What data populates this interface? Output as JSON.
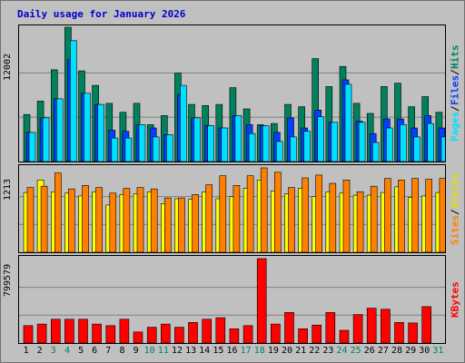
{
  "title": "Daily usage for January 2026",
  "colors": {
    "hits": "#00805c",
    "files": "#0040ff",
    "pages": "#00e0ff",
    "visits": "#ffff00",
    "sites": "#ff8000",
    "kbytes": "#ff0000",
    "weekend_label": "#00805c",
    "weekday_label": "#000000",
    "title": "#0000cc"
  },
  "panel_labels": {
    "top": {
      "pages": "Pages",
      "files": "Files",
      "hits": "Hits",
      "sep": " / "
    },
    "middle": {
      "sites": "Sites",
      "visits": "Visits",
      "sep": " / "
    },
    "bottom": {
      "kbytes": "KBytes"
    }
  },
  "chart_data": [
    {
      "type": "bar",
      "name": "hits-files-pages",
      "categories": [
        "1",
        "2",
        "3",
        "4",
        "5",
        "6",
        "7",
        "8",
        "9",
        "10",
        "11",
        "12",
        "13",
        "14",
        "15",
        "16",
        "17",
        "18",
        "19",
        "20",
        "21",
        "22",
        "23",
        "24",
        "25",
        "26",
        "27",
        "28",
        "29",
        "30",
        "31"
      ],
      "weekend_days": [
        "3",
        "4",
        "10",
        "11",
        "17",
        "18",
        "24",
        "25",
        "31"
      ],
      "ymax_label": "12002",
      "ylim": [
        0,
        12002
      ],
      "series": [
        {
          "name": "Hits",
          "values": [
            4200,
            5400,
            8200,
            12002,
            8100,
            6800,
            5200,
            4400,
            5200,
            3300,
            4100,
            7900,
            5100,
            5000,
            5100,
            6600,
            4700,
            3300,
            3400,
            5100,
            4900,
            9200,
            6700,
            8500,
            5200,
            4300,
            6700,
            7000,
            4900,
            5800,
            4400
          ]
        },
        {
          "name": "Files",
          "values": [
            2600,
            3900,
            5600,
            9100,
            6100,
            5100,
            2800,
            2700,
            3300,
            3000,
            2400,
            6000,
            3900,
            3200,
            3000,
            4100,
            3300,
            3200,
            2600,
            3900,
            3000,
            4600,
            3500,
            7300,
            3600,
            2500,
            3800,
            3800,
            3000,
            4100,
            3000
          ]
        },
        {
          "name": "Pages",
          "values": [
            2600,
            3900,
            5600,
            10800,
            6100,
            5100,
            2100,
            2100,
            3300,
            2200,
            2400,
            6800,
            3900,
            3200,
            3000,
            4100,
            2500,
            3200,
            1800,
            2200,
            2700,
            4000,
            3500,
            6900,
            3500,
            1700,
            3000,
            3300,
            2200,
            3400,
            2200
          ]
        }
      ]
    },
    {
      "type": "bar",
      "name": "visits-sites",
      "categories": [
        "1",
        "2",
        "3",
        "4",
        "5",
        "6",
        "7",
        "8",
        "9",
        "10",
        "11",
        "12",
        "13",
        "14",
        "15",
        "16",
        "17",
        "18",
        "19",
        "20",
        "21",
        "22",
        "23",
        "24",
        "25",
        "26",
        "27",
        "28",
        "29",
        "30",
        "31"
      ],
      "ymax_label": "1213",
      "ylim": [
        0,
        1213
      ],
      "series": [
        {
          "name": "Visits",
          "values": [
            860,
            1040,
            870,
            850,
            810,
            870,
            680,
            830,
            840,
            870,
            700,
            770,
            760,
            870,
            770,
            800,
            920,
            1040,
            880,
            840,
            920,
            800,
            870,
            850,
            820,
            820,
            860,
            940,
            790,
            810,
            860
          ]
        },
        {
          "name": "Sites",
          "values": [
            930,
            950,
            1140,
            910,
            960,
            930,
            850,
            920,
            930,
            910,
            780,
            780,
            830,
            970,
            1100,
            960,
            1100,
            1213,
            1150,
            930,
            1070,
            1110,
            990,
            1040,
            870,
            950,
            1060,
            1040,
            1060,
            1050,
            1060
          ]
        }
      ]
    },
    {
      "type": "bar",
      "name": "kbytes",
      "categories": [
        "1",
        "2",
        "3",
        "4",
        "5",
        "6",
        "7",
        "8",
        "9",
        "10",
        "11",
        "12",
        "13",
        "14",
        "15",
        "16",
        "17",
        "18",
        "19",
        "20",
        "21",
        "22",
        "23",
        "24",
        "25",
        "26",
        "27",
        "28",
        "29",
        "30",
        "31"
      ],
      "ymax_label": "799579",
      "ylim": [
        0,
        799579
      ],
      "series": [
        {
          "name": "KBytes",
          "values": [
            165000,
            180000,
            225000,
            225000,
            225000,
            180000,
            165000,
            225000,
            105000,
            150000,
            180000,
            150000,
            195000,
            225000,
            240000,
            135000,
            165000,
            799579,
            180000,
            290000,
            135000,
            170000,
            290000,
            120000,
            270000,
            330000,
            320000,
            195000,
            190000,
            345000,
            0
          ]
        }
      ]
    }
  ]
}
